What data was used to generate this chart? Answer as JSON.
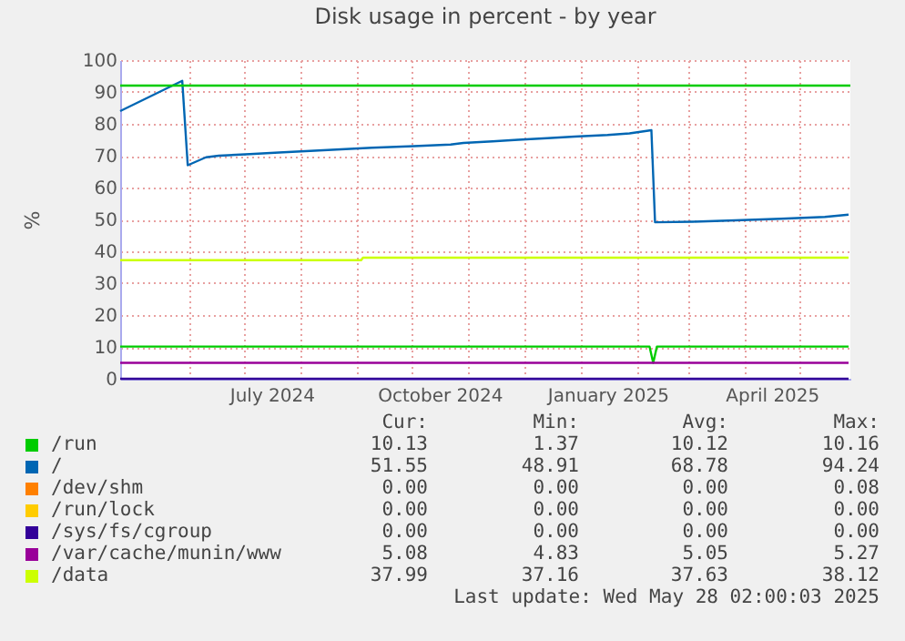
{
  "chart_data": {
    "type": "line",
    "title": "Disk usage in percent - by year",
    "ylabel": "%",
    "xlim": [
      "2024-04-24",
      "2025-05-29"
    ],
    "ylim": [
      0,
      100
    ],
    "yticks": [
      0,
      10,
      20,
      30,
      40,
      50,
      60,
      70,
      80,
      90,
      100
    ],
    "xticks": [
      {
        "value": "2024-06-01",
        "label": null
      },
      {
        "value": "2024-07-01",
        "label": null
      },
      {
        "value": "2024-07-16",
        "label": "July 2024"
      },
      {
        "value": "2024-08-01",
        "label": null
      },
      {
        "value": "2024-09-01",
        "label": null
      },
      {
        "value": "2024-10-01",
        "label": null
      },
      {
        "value": "2024-10-16",
        "label": "October 2024"
      },
      {
        "value": "2024-11-01",
        "label": null
      },
      {
        "value": "2024-12-01",
        "label": null
      },
      {
        "value": "2025-01-01",
        "label": null
      },
      {
        "value": "2025-01-16",
        "label": "January 2025"
      },
      {
        "value": "2025-02-01",
        "label": null
      },
      {
        "value": "2025-03-01",
        "label": null
      },
      {
        "value": "2025-04-01",
        "label": null
      },
      {
        "value": "2025-04-16",
        "label": "April 2025"
      },
      {
        "value": "2025-05-01",
        "label": null
      }
    ],
    "grid": true,
    "legend": "bottom",
    "line_style": "solid",
    "ref_lines": [
      {
        "axis": "y",
        "value": 92,
        "color": "#00cc00"
      }
    ],
    "series": [
      {
        "name": "/run",
        "color": "#00cc00",
        "x": [
          "2024-04-24",
          "2025-02-08",
          "2025-02-10",
          "2025-02-12",
          "2025-05-28"
        ],
        "values": [
          10.1,
          10.1,
          5,
          10.1,
          10.1
        ]
      },
      {
        "name": "/",
        "color": "#0066b3",
        "x": [
          "2024-04-24",
          "2024-05-28",
          "2024-05-31",
          "2024-06-10",
          "2024-06-17",
          "2024-07-04",
          "2024-07-20",
          "2024-08-06",
          "2024-08-23",
          "2024-09-09",
          "2024-10-02",
          "2024-10-22",
          "2024-10-29",
          "2024-11-14",
          "2024-11-28",
          "2024-12-14",
          "2024-12-29",
          "2025-01-16",
          "2025-01-28",
          "2025-02-09",
          "2025-02-11",
          "2025-03-04",
          "2025-03-27",
          "2025-04-21",
          "2025-05-15",
          "2025-05-28"
        ],
        "values": [
          84,
          93.5,
          67,
          69.5,
          70,
          70.5,
          71,
          71.5,
          72,
          72.5,
          73,
          73.5,
          74,
          74.5,
          75,
          75.5,
          76,
          76.5,
          77,
          78,
          49.1,
          49.3,
          49.7,
          50.2,
          50.8,
          51.5
        ]
      },
      {
        "name": "/dev/shm",
        "color": "#ff8000"
      },
      {
        "name": "/run/lock",
        "color": "#ffcc00"
      },
      {
        "name": "/sys/fs/cgroup",
        "color": "#330099",
        "x": [
          "2024-04-24",
          "2025-05-28"
        ],
        "values": [
          0,
          0
        ]
      },
      {
        "name": "/var/cache/munin/www",
        "color": "#990099",
        "x": [
          "2024-04-24",
          "2025-05-28"
        ],
        "values": [
          5,
          5
        ]
      },
      {
        "name": "/data",
        "color": "#ccff00",
        "x": [
          "2024-04-24",
          "2024-09-03",
          "2024-09-04",
          "2025-05-28"
        ],
        "values": [
          37.2,
          37.2,
          38,
          38
        ]
      }
    ],
    "annotations": [
      "Cur:",
      "Min:",
      "Avg:",
      "Max:",
      "10.13",
      "1.37",
      "10.12",
      "10.16",
      "51.55",
      "48.91",
      "68.78",
      "94.24",
      "0.00",
      "0.00",
      "0.00",
      "0.08",
      "0.00",
      "0.00",
      "0.00",
      "0.00",
      "0.00",
      "0.00",
      "0.00",
      "0.00",
      "5.08",
      "4.83",
      "5.05",
      "5.27",
      "37.99",
      "37.16",
      "37.63",
      "38.12",
      "Last update: Wed May 28 02:00:03 2025"
    ]
  }
}
